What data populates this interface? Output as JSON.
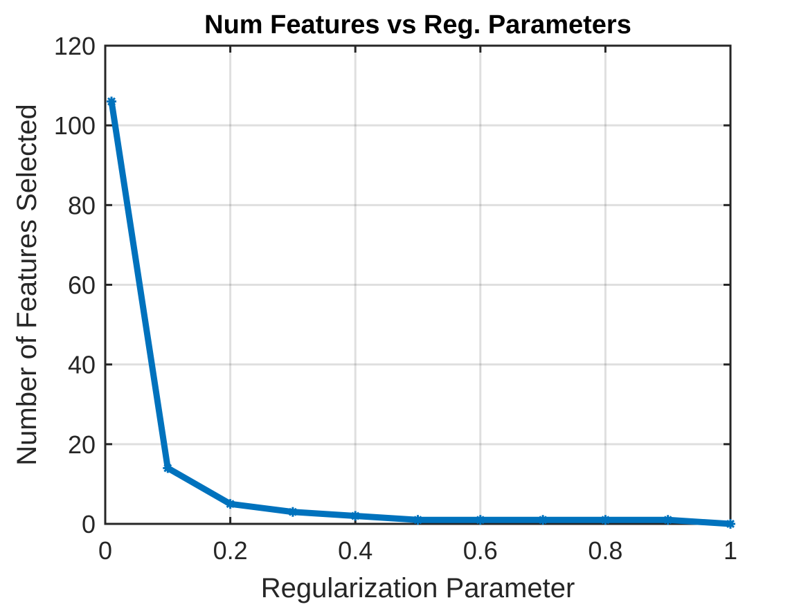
{
  "chart_data": {
    "type": "line",
    "title": "Num Features vs Reg. Parameters",
    "xlabel": "Regularization Parameter",
    "ylabel": "Number of Features Selected",
    "xlim": [
      0,
      1
    ],
    "ylim": [
      0,
      120
    ],
    "x_ticks": [
      0,
      0.2,
      0.4,
      0.6,
      0.8,
      1
    ],
    "x_tick_labels": [
      "0",
      "0.2",
      "0.4",
      "0.6",
      "0.8",
      "1"
    ],
    "y_ticks": [
      0,
      20,
      40,
      60,
      80,
      100,
      120
    ],
    "y_tick_labels": [
      "0",
      "20",
      "40",
      "60",
      "80",
      "100",
      "120"
    ],
    "grid": true,
    "series": [
      {
        "color": "#0072BD",
        "marker": "star",
        "x": [
          0.01,
          0.1,
          0.2,
          0.3,
          0.4,
          0.5,
          0.6,
          0.7,
          0.8,
          0.9,
          1.0
        ],
        "y": [
          106,
          14,
          5,
          3,
          2,
          1,
          1,
          1,
          1,
          1,
          0
        ]
      }
    ]
  }
}
